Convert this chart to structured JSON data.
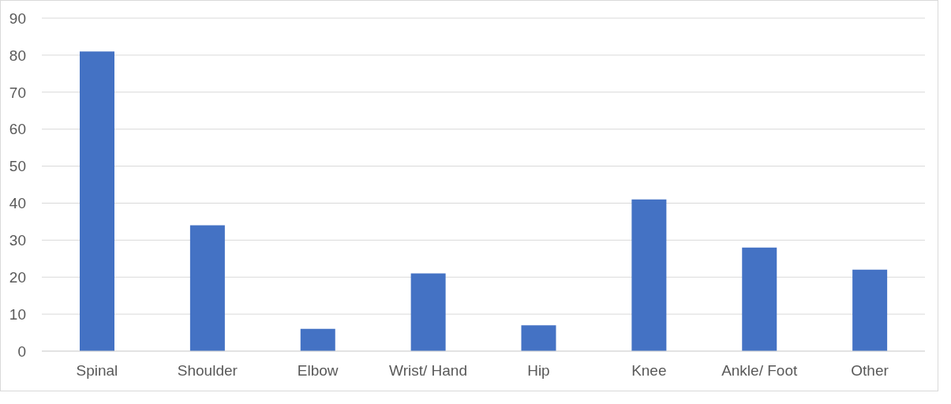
{
  "chart_data": {
    "type": "bar",
    "categories": [
      "Spinal",
      "Shoulder",
      "Elbow",
      "Wrist/ Hand",
      "Hip",
      "Knee",
      "Ankle/ Foot",
      "Other"
    ],
    "values": [
      81,
      34,
      6,
      21,
      7,
      41,
      28,
      22
    ],
    "color": "#4472c4",
    "ylim": [
      0,
      90
    ],
    "yticks": [
      0,
      10,
      20,
      30,
      40,
      50,
      60,
      70,
      80,
      90
    ],
    "grid": "y"
  }
}
